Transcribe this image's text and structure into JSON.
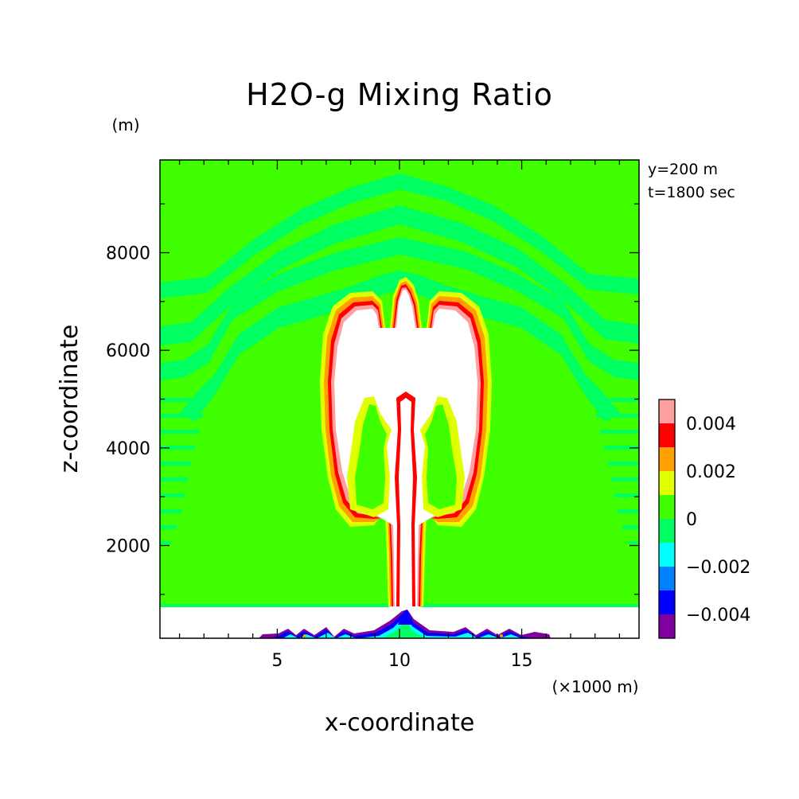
{
  "chart_data": {
    "type": "heatmap",
    "title": "H2O-g Mixing Ratio",
    "xlabel": "x-coordinate",
    "ylabel": "z-coordinate",
    "x_unit": "(×1000 m)",
    "y_unit": "(m)",
    "xlim": [
      0.2,
      19.8
    ],
    "ylim": [
      100,
      9900
    ],
    "x_ticks": [
      5,
      10,
      15
    ],
    "x_tick_labels": [
      "5",
      "10",
      "15"
    ],
    "y_ticks": [
      2000,
      4000,
      6000,
      8000
    ],
    "y_tick_labels": [
      "2000",
      "4000",
      "6000",
      "8000"
    ],
    "annotations": [
      "y=200 m",
      "t=1800 sec"
    ],
    "colorbar": {
      "levels": [
        -0.005,
        -0.004,
        -0.003,
        -0.002,
        -0.001,
        0,
        0.001,
        0.002,
        0.003,
        0.004,
        0.005
      ],
      "colors": [
        "#8000a0",
        "#0000ff",
        "#0080ff",
        "#00ffff",
        "#00ff60",
        "#40ff00",
        "#e0ff00",
        "#ffa000",
        "#ff0000",
        "#ffa0a0"
      ],
      "tick_values": [
        0.004,
        0.002,
        0,
        -0.002,
        -0.004
      ],
      "tick_labels": [
        "0.004",
        "0.002",
        "0",
        "-0.002",
        "-0.004"
      ]
    },
    "field": {
      "background_value": 0.0005,
      "band_value": -0.0005,
      "outside_range_value": "above 0.005 (white)",
      "boundary_layer_top_z": 700,
      "plume_axis_x": 10.2,
      "plume_cap_top_z": 7400
    }
  }
}
